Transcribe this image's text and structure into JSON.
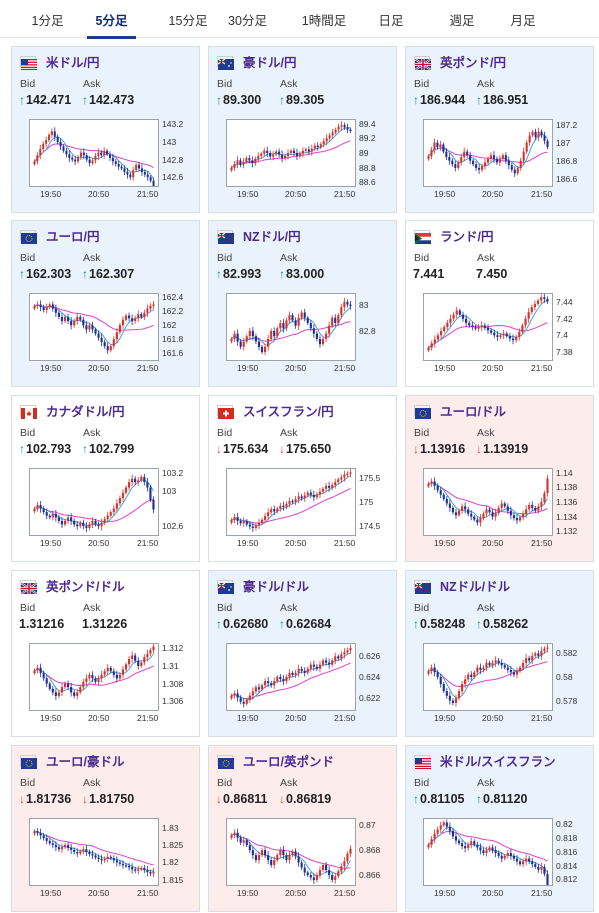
{
  "tabs": [
    {
      "label": "1分足",
      "active": false
    },
    {
      "label": "5分足",
      "active": true
    },
    {
      "label": "15分足",
      "active": false
    },
    {
      "label": "30分足",
      "active": false
    },
    {
      "label": "1時間足",
      "active": false
    },
    {
      "label": "日足",
      "active": false
    },
    {
      "label": "週足",
      "active": false
    },
    {
      "label": "月足",
      "active": false
    }
  ],
  "labels": {
    "bid": "Bid",
    "ask": "Ask"
  },
  "colors": {
    "up_candle": "#d9322b",
    "down_candle": "#1f2f9a",
    "ma_short": "#4aa3df",
    "ma_long": "#e040d0",
    "up_bg": "#eaf3fc",
    "down_bg": "#fcecec",
    "up_arrow": "#1d8a8a",
    "down_arrow": "#d14a3a"
  },
  "cards": [
    {
      "pair": "米ドル/円",
      "flag": "us-flag",
      "bg": "up",
      "dir": "up",
      "bid": "142.471",
      "ask": "142.473",
      "chart_data": {
        "type": "candlestick",
        "x_ticks": [
          "19:50",
          "20:50",
          "21:50"
        ],
        "y_ticks": [
          "143.2",
          "143",
          "142.8",
          "142.6"
        ],
        "ylim": [
          142.5,
          143.25
        ],
        "close": [
          142.78,
          142.85,
          142.92,
          142.98,
          143.02,
          143.08,
          143.12,
          143.06,
          143.0,
          142.95,
          142.9,
          142.86,
          142.82,
          142.8,
          142.78,
          142.83,
          142.88,
          142.85,
          142.8,
          142.76,
          142.79,
          142.84,
          142.88,
          142.85,
          142.9,
          142.86,
          142.82,
          142.78,
          142.75,
          142.72,
          142.7,
          142.66,
          142.63,
          142.6,
          142.68,
          142.74,
          142.7,
          142.66,
          142.63,
          142.6,
          142.56,
          142.47
        ]
      }
    },
    {
      "pair": "豪ドル/円",
      "flag": "australia-flag",
      "bg": "up",
      "dir": "up",
      "bid": "89.300",
      "ask": "89.305",
      "chart_data": {
        "type": "candlestick",
        "x_ticks": [
          "19:50",
          "20:50",
          "21:50"
        ],
        "y_ticks": [
          "89.4",
          "89.2",
          "89",
          "88.8",
          "88.6"
        ],
        "ylim": [
          88.55,
          89.45
        ],
        "close": [
          88.8,
          88.85,
          88.9,
          88.84,
          88.88,
          88.93,
          88.9,
          88.86,
          88.92,
          88.96,
          88.99,
          89.03,
          89.0,
          88.95,
          88.98,
          89.02,
          88.98,
          88.93,
          88.96,
          89.0,
          89.03,
          89.0,
          88.96,
          88.99,
          89.03,
          89.05,
          89.02,
          89.06,
          89.1,
          89.08,
          89.12,
          89.16,
          89.2,
          89.24,
          89.28,
          89.32,
          89.36,
          89.38,
          89.35,
          89.32,
          89.3
        ]
      }
    },
    {
      "pair": "英ポンド/円",
      "flag": "uk-flag",
      "bg": "up",
      "dir": "up",
      "bid": "186.944",
      "ask": "186.951",
      "chart_data": {
        "type": "candlestick",
        "x_ticks": [
          "19:50",
          "20:50",
          "21:50"
        ],
        "y_ticks": [
          "187.2",
          "187",
          "186.8",
          "186.6"
        ],
        "ylim": [
          186.52,
          187.25
        ],
        "close": [
          186.85,
          186.92,
          187.0,
          186.95,
          186.98,
          186.9,
          186.84,
          186.8,
          186.76,
          186.72,
          186.78,
          186.84,
          186.9,
          186.86,
          186.8,
          186.76,
          186.72,
          186.7,
          186.74,
          186.78,
          186.82,
          186.86,
          186.82,
          186.78,
          186.82,
          186.86,
          186.8,
          186.75,
          186.7,
          186.66,
          186.72,
          186.8,
          186.9,
          187.0,
          187.08,
          187.12,
          187.06,
          187.12,
          187.08,
          187.02,
          186.95
        ]
      }
    },
    {
      "pair": "ユーロ/円",
      "flag": "eu-flag",
      "bg": "up",
      "dir": "up",
      "bid": "162.303",
      "ask": "162.307",
      "chart_data": {
        "type": "candlestick",
        "x_ticks": [
          "19:50",
          "20:50",
          "21:50"
        ],
        "y_ticks": [
          "162.4",
          "162.2",
          "162",
          "161.8",
          "161.6"
        ],
        "ylim": [
          161.5,
          162.45
        ],
        "close": [
          162.28,
          162.3,
          162.26,
          162.22,
          162.26,
          162.3,
          162.24,
          162.18,
          162.12,
          162.06,
          162.12,
          162.06,
          162.0,
          162.06,
          162.12,
          162.08,
          162.0,
          161.94,
          162.0,
          161.94,
          161.88,
          161.82,
          161.76,
          161.7,
          161.64,
          161.7,
          161.8,
          161.9,
          162.0,
          162.08,
          162.14,
          162.1,
          162.06,
          162.1,
          162.16,
          162.12,
          162.18,
          162.24,
          162.28,
          162.3
        ]
      }
    },
    {
      "pair": "NZドル/円",
      "flag": "new-zealand-flag",
      "bg": "up",
      "dir": "up",
      "bid": "82.993",
      "ask": "83.000",
      "chart_data": {
        "type": "candlestick",
        "x_ticks": [
          "19:50",
          "20:50",
          "21:50"
        ],
        "y_ticks": [
          "83",
          "82.8"
        ],
        "ylim": [
          82.58,
          83.08
        ],
        "close": [
          82.74,
          82.78,
          82.72,
          82.68,
          82.72,
          82.76,
          82.8,
          82.76,
          82.72,
          82.68,
          82.64,
          82.68,
          82.74,
          82.8,
          82.76,
          82.82,
          82.86,
          82.82,
          82.88,
          82.92,
          82.88,
          82.84,
          82.9,
          82.94,
          82.9,
          82.86,
          82.82,
          82.78,
          82.74,
          82.7,
          82.74,
          82.78,
          82.84,
          82.9,
          82.86,
          82.92,
          82.98,
          83.02,
          83.0,
          82.99
        ]
      }
    },
    {
      "pair": "ランド/円",
      "flag": "south-africa-flag",
      "bg": "neutral",
      "dir": "none",
      "bid": "7.441",
      "ask": "7.450",
      "chart_data": {
        "type": "candlestick",
        "x_ticks": [
          "19:50",
          "20:50",
          "21:50"
        ],
        "y_ticks": [
          "7.44",
          "7.42",
          "7.4",
          "7.38"
        ],
        "ylim": [
          7.37,
          7.45
        ],
        "close": [
          7.385,
          7.39,
          7.395,
          7.4,
          7.405,
          7.41,
          7.415,
          7.42,
          7.425,
          7.43,
          7.425,
          7.42,
          7.415,
          7.412,
          7.41,
          7.408,
          7.41,
          7.412,
          7.409,
          7.406,
          7.403,
          7.4,
          7.398,
          7.4,
          7.402,
          7.399,
          7.396,
          7.394,
          7.398,
          7.404,
          7.412,
          7.42,
          7.428,
          7.434,
          7.438,
          7.442,
          7.446,
          7.444,
          7.441
        ]
      }
    },
    {
      "pair": "カナダドル/円",
      "flag": "canada-flag",
      "bg": "neutral",
      "dir": "up",
      "bid": "102.793",
      "ask": "102.799",
      "chart_data": {
        "type": "candlestick",
        "x_ticks": [
          "19:50",
          "20:50",
          "21:50"
        ],
        "y_ticks": [
          "103.2",
          "103",
          "102.6"
        ],
        "ylim": [
          102.5,
          103.25
        ],
        "close": [
          102.8,
          102.84,
          102.8,
          102.76,
          102.72,
          102.7,
          102.74,
          102.7,
          102.66,
          102.62,
          102.66,
          102.7,
          102.66,
          102.62,
          102.6,
          102.64,
          102.6,
          102.58,
          102.62,
          102.66,
          102.62,
          102.6,
          102.64,
          102.68,
          102.72,
          102.76,
          102.8,
          102.86,
          102.92,
          102.98,
          103.04,
          103.1,
          103.14,
          103.1,
          103.12,
          103.16,
          103.1,
          103.04,
          102.9,
          102.79
        ]
      }
    },
    {
      "pair": "スイスフラン/円",
      "flag": "switzerland-flag",
      "bg": "neutral",
      "dir": "down",
      "bid": "175.634",
      "ask": "175.650",
      "chart_data": {
        "type": "candlestick",
        "x_ticks": [
          "19:50",
          "20:50",
          "21:50"
        ],
        "y_ticks": [
          "175.5",
          "175",
          "174.5"
        ],
        "ylim": [
          174.3,
          175.7
        ],
        "close": [
          174.62,
          174.68,
          174.6,
          174.55,
          174.6,
          174.52,
          174.48,
          174.45,
          174.5,
          174.56,
          174.62,
          174.7,
          174.78,
          174.85,
          174.8,
          174.86,
          174.92,
          174.9,
          174.96,
          175.02,
          175.0,
          175.06,
          175.12,
          175.08,
          175.14,
          175.2,
          175.15,
          175.1,
          175.16,
          175.22,
          175.28,
          175.34,
          175.3,
          175.36,
          175.42,
          175.48,
          175.52,
          175.58,
          175.6,
          175.63
        ]
      }
    },
    {
      "pair": "ユーロ/ドル",
      "flag": "eu-us-flag",
      "bg": "dn",
      "dir": "down",
      "bid": "1.13916",
      "ask": "1.13919",
      "chart_data": {
        "type": "candlestick",
        "x_ticks": [
          "19:50",
          "20:50",
          "21:50"
        ],
        "y_ticks": [
          "1.14",
          "1.138",
          "1.136",
          "1.134",
          "1.132"
        ],
        "ylim": [
          1.1315,
          1.1405
        ],
        "close": [
          1.1385,
          1.1388,
          1.1382,
          1.1376,
          1.137,
          1.1364,
          1.1358,
          1.1352,
          1.1346,
          1.1342,
          1.1348,
          1.1354,
          1.135,
          1.1344,
          1.134,
          1.1336,
          1.1332,
          1.1338,
          1.1344,
          1.135,
          1.1346,
          1.134,
          1.1345,
          1.1352,
          1.1358,
          1.1354,
          1.1348,
          1.1342,
          1.1338,
          1.1335,
          1.1339,
          1.1344,
          1.135,
          1.1356,
          1.1352,
          1.1348,
          1.1354,
          1.136,
          1.1372,
          1.1392
        ]
      }
    },
    {
      "pair": "英ポンド/ドル",
      "flag": "uk-us-flag",
      "bg": "neutral",
      "dir": "none",
      "bid": "1.31216",
      "ask": "1.31226",
      "chart_data": {
        "type": "candlestick",
        "x_ticks": [
          "19:50",
          "20:50",
          "21:50"
        ],
        "y_ticks": [
          "1.312",
          "1.31",
          "1.308",
          "1.306"
        ],
        "ylim": [
          1.305,
          1.3125
        ],
        "close": [
          1.3095,
          1.3098,
          1.3092,
          1.3086,
          1.308,
          1.3074,
          1.307,
          1.3066,
          1.307,
          1.3076,
          1.308,
          1.3076,
          1.307,
          1.3066,
          1.307,
          1.3076,
          1.3082,
          1.3086,
          1.309,
          1.3086,
          1.3082,
          1.3086,
          1.309,
          1.3094,
          1.3098,
          1.3094,
          1.309,
          1.3086,
          1.309,
          1.3096,
          1.3102,
          1.3108,
          1.3112,
          1.3106,
          1.31,
          1.3104,
          1.311,
          1.3114,
          1.3118,
          1.3122
        ]
      }
    },
    {
      "pair": "豪ドル/ドル",
      "flag": "australia-us-flag",
      "bg": "up",
      "dir": "up",
      "bid": "0.62680",
      "ask": "0.62684",
      "chart_data": {
        "type": "candlestick",
        "x_ticks": [
          "19:50",
          "20:50",
          "21:50"
        ],
        "y_ticks": [
          "0.626",
          "0.624",
          "0.622"
        ],
        "ylim": [
          0.6208,
          0.6272
        ],
        "close": [
          0.6222,
          0.6224,
          0.622,
          0.6216,
          0.6214,
          0.6218,
          0.6222,
          0.6226,
          0.623,
          0.6228,
          0.6232,
          0.6236,
          0.6234,
          0.6232,
          0.6236,
          0.624,
          0.6238,
          0.6236,
          0.624,
          0.6244,
          0.6242,
          0.6244,
          0.6248,
          0.6246,
          0.6244,
          0.6248,
          0.6252,
          0.625,
          0.6248,
          0.6252,
          0.6256,
          0.6254,
          0.6252,
          0.6256,
          0.626,
          0.6258,
          0.6262,
          0.6264,
          0.6266,
          0.6268
        ]
      }
    },
    {
      "pair": "NZドル/ドル",
      "flag": "new-zealand-us-flag",
      "bg": "up",
      "dir": "up",
      "bid": "0.58248",
      "ask": "0.58262",
      "chart_data": {
        "type": "candlestick",
        "x_ticks": [
          "19:50",
          "20:50",
          "21:50"
        ],
        "y_ticks": [
          "0.582",
          "0.58",
          "0.578"
        ],
        "ylim": [
          0.5772,
          0.5828
        ],
        "close": [
          0.5805,
          0.5808,
          0.5804,
          0.58,
          0.5794,
          0.5788,
          0.5784,
          0.578,
          0.5778,
          0.5782,
          0.5788,
          0.5794,
          0.5798,
          0.5802,
          0.58,
          0.5804,
          0.5808,
          0.5806,
          0.5808,
          0.5812,
          0.581,
          0.5812,
          0.5814,
          0.5812,
          0.581,
          0.5808,
          0.5806,
          0.5804,
          0.5802,
          0.5805,
          0.5808,
          0.5812,
          0.5816,
          0.5814,
          0.5818,
          0.582,
          0.5818,
          0.5822,
          0.5824,
          0.5825
        ]
      }
    },
    {
      "pair": "ユーロ/豪ドル",
      "flag": "eu-australia-flag",
      "bg": "dn",
      "dir": "down",
      "bid": "1.81736",
      "ask": "1.81750",
      "chart_data": {
        "type": "candlestick",
        "x_ticks": [
          "19:50",
          "20:50",
          "21:50"
        ],
        "y_ticks": [
          "1.83",
          "1.825",
          "1.82",
          "1.815"
        ],
        "ylim": [
          1.8135,
          1.8325
        ],
        "close": [
          1.829,
          1.8285,
          1.8278,
          1.827,
          1.8262,
          1.8255,
          1.825,
          1.8244,
          1.8238,
          1.8244,
          1.825,
          1.8242,
          1.8236,
          1.823,
          1.8226,
          1.8232,
          1.8238,
          1.823,
          1.8224,
          1.822,
          1.8214,
          1.821,
          1.8206,
          1.821,
          1.8216,
          1.8212,
          1.8206,
          1.82,
          1.8196,
          1.8192,
          1.819,
          1.8186,
          1.818,
          1.8176,
          1.818,
          1.8184,
          1.8178,
          1.8172,
          1.8168,
          1.8174
        ]
      }
    },
    {
      "pair": "ユーロ/英ポンド",
      "flag": "eu-uk-flag",
      "bg": "dn",
      "dir": "down",
      "bid": "0.86811",
      "ask": "0.86819",
      "chart_data": {
        "type": "candlestick",
        "x_ticks": [
          "19:50",
          "20:50",
          "21:50"
        ],
        "y_ticks": [
          "0.87",
          "0.868",
          "0.866"
        ],
        "ylim": [
          0.8652,
          0.8705
        ],
        "close": [
          0.8692,
          0.8694,
          0.869,
          0.8686,
          0.8688,
          0.8684,
          0.868,
          0.8676,
          0.8672,
          0.8676,
          0.868,
          0.8676,
          0.8672,
          0.8668,
          0.8672,
          0.8676,
          0.868,
          0.8676,
          0.8672,
          0.8676,
          0.8679,
          0.8675,
          0.867,
          0.8666,
          0.8662,
          0.866,
          0.8658,
          0.8656,
          0.866,
          0.8664,
          0.8668,
          0.8664,
          0.866,
          0.8656,
          0.8659,
          0.8663,
          0.8667,
          0.8671,
          0.8677,
          0.8681
        ]
      }
    },
    {
      "pair": "米ドル/スイスフラン",
      "flag": "us-switzerland-flag",
      "bg": "up",
      "dir": "up",
      "bid": "0.81105",
      "ask": "0.81120",
      "chart_data": {
        "type": "candlestick",
        "x_ticks": [
          "19:50",
          "20:50",
          "21:50"
        ],
        "y_ticks": [
          "0.82",
          "0.818",
          "0.816",
          "0.814",
          "0.812"
        ],
        "ylim": [
          0.8112,
          0.8207
        ],
        "close": [
          0.817,
          0.8178,
          0.8186,
          0.8192,
          0.8198,
          0.8202,
          0.8196,
          0.819,
          0.8182,
          0.8176,
          0.8172,
          0.8168,
          0.8165,
          0.817,
          0.8175,
          0.817,
          0.8166,
          0.8162,
          0.8158,
          0.8162,
          0.8166,
          0.8162,
          0.8158,
          0.8154,
          0.815,
          0.8154,
          0.8158,
          0.8154,
          0.815,
          0.8146,
          0.8142,
          0.8146,
          0.815,
          0.8146,
          0.8142,
          0.8138,
          0.8134,
          0.8138,
          0.8128,
          0.8112
        ]
      }
    }
  ]
}
